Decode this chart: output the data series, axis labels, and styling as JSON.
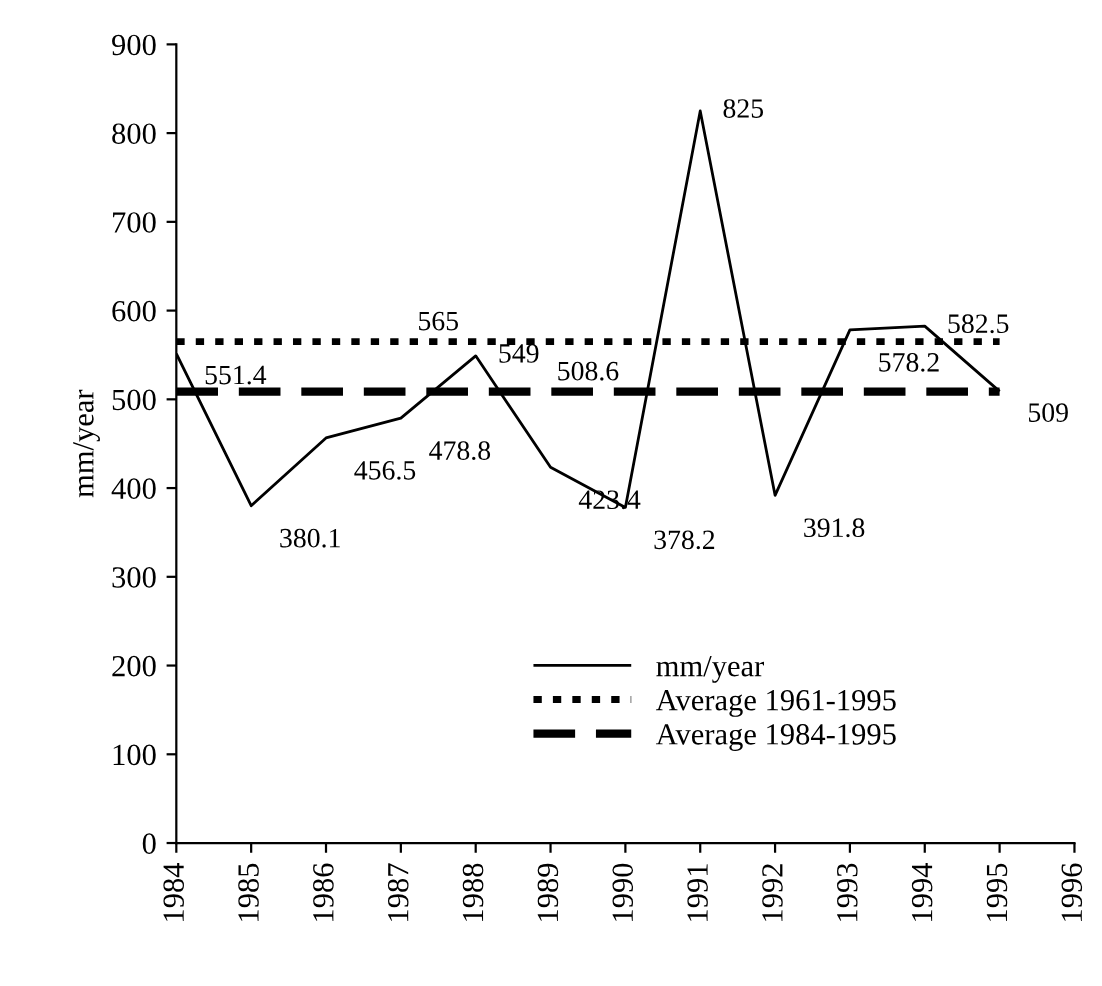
{
  "chart_data": {
    "type": "line",
    "ylabel": "mm/year",
    "xlim": [
      1984,
      1996
    ],
    "xticks": [
      1984,
      1985,
      1986,
      1987,
      1988,
      1989,
      1990,
      1991,
      1992,
      1993,
      1994,
      1995,
      1996
    ],
    "ylim": [
      0,
      900
    ],
    "yticks": [
      0,
      100,
      200,
      300,
      400,
      500,
      600,
      700,
      800,
      900
    ],
    "grid": false,
    "legend": "bottom",
    "marker": "none",
    "series": [
      {
        "name": "mm/year",
        "color": "#000000",
        "line_style": "solid",
        "x": [
          1984,
          1985,
          1986,
          1987,
          1988,
          1989,
          1990,
          1991,
          1992,
          1993,
          1994,
          1995
        ],
        "values": [
          551.4,
          380.1,
          456.5,
          478.8,
          549,
          423.4,
          378.2,
          825,
          391.8,
          578.2,
          582.5,
          509
        ],
        "data_labels": true
      },
      {
        "name": "Average 1961-1995",
        "color": "#000000",
        "line_style": "dotted",
        "x": [
          1984,
          1995
        ],
        "values": [
          565,
          565
        ]
      },
      {
        "name": "Average 1984-1995",
        "color": "#000000",
        "line_style": "dashed",
        "x": [
          1984,
          1995
        ],
        "values": [
          508.6,
          508.6
        ]
      }
    ],
    "annotations": [
      {
        "text": "565",
        "x": 1987.5,
        "y": 565
      },
      {
        "text": "508.6",
        "x": 1989.5,
        "y": 508.6
      }
    ]
  }
}
